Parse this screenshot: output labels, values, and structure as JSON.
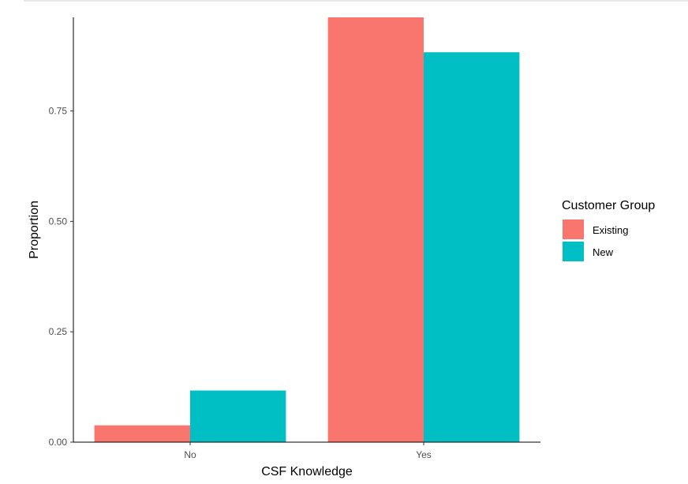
{
  "chart_data": {
    "type": "bar",
    "categories": [
      "No",
      "Yes"
    ],
    "series": [
      {
        "name": "Existing",
        "values": [
          0.038,
          0.962
        ],
        "color": "#F8766D"
      },
      {
        "name": "New",
        "values": [
          0.117,
          0.883
        ],
        "color": "#00BFC4"
      }
    ],
    "xlabel": "CSF Knowledge",
    "ylabel": "Proportion",
    "ylim": [
      0,
      0.962
    ],
    "yticks": [
      0.0,
      0.25,
      0.5,
      0.75
    ],
    "ytick_labels": [
      "0.00",
      "0.25",
      "0.50",
      "0.75"
    ],
    "legend": {
      "title": "Customer Group",
      "position": "right"
    },
    "grid": false
  }
}
